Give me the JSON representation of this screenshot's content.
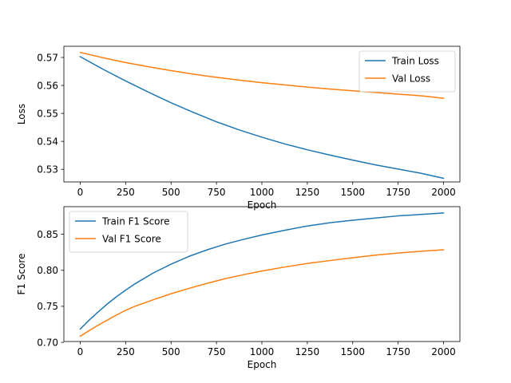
{
  "chart_data": [
    {
      "type": "line",
      "xlabel": "Epoch",
      "ylabel": "Loss",
      "xlim": [
        -90,
        2090
      ],
      "ylim": [
        0.5255,
        0.574
      ],
      "xticks": [
        0,
        250,
        500,
        750,
        1000,
        1250,
        1500,
        1750,
        2000
      ],
      "yticks": [
        0.53,
        0.54,
        0.55,
        0.56,
        0.57
      ],
      "ytick_labels": [
        "0.53",
        "0.54",
        "0.55",
        "0.56",
        "0.57"
      ],
      "legend": "top-right",
      "series": [
        {
          "name": "Train Loss",
          "color": "#1f77b4",
          "x": [
            0,
            125,
            250,
            375,
            500,
            625,
            750,
            875,
            1000,
            1125,
            1250,
            1375,
            1500,
            1625,
            1750,
            1875,
            2000
          ],
          "y": [
            0.5703,
            0.5658,
            0.5616,
            0.5576,
            0.5538,
            0.5503,
            0.547,
            0.5441,
            0.5415,
            0.5391,
            0.537,
            0.5351,
            0.5333,
            0.5316,
            0.5301,
            0.5286,
            0.5268
          ]
        },
        {
          "name": "Val Loss",
          "color": "#ff7f0e",
          "x": [
            0,
            125,
            250,
            375,
            500,
            625,
            750,
            875,
            1000,
            1125,
            1250,
            1375,
            1500,
            1625,
            1750,
            1875,
            2000
          ],
          "y": [
            0.5718,
            0.5699,
            0.5682,
            0.5667,
            0.5653,
            0.564,
            0.5629,
            0.5619,
            0.561,
            0.5602,
            0.5594,
            0.5587,
            0.5581,
            0.5575,
            0.5569,
            0.5563,
            0.5554
          ]
        }
      ]
    },
    {
      "type": "line",
      "xlabel": "Epoch",
      "ylabel": "F1 Score",
      "xlim": [
        -90,
        2090
      ],
      "ylim": [
        0.7012,
        0.8883
      ],
      "xticks": [
        0,
        250,
        500,
        750,
        1000,
        1250,
        1500,
        1750,
        2000
      ],
      "yticks": [
        0.7,
        0.75,
        0.8,
        0.85
      ],
      "ytick_labels": [
        "0.70",
        "0.75",
        "0.80",
        "0.85"
      ],
      "legend": "top-left",
      "series": [
        {
          "name": "Train F1 Score",
          "color": "#1f77b4",
          "x": [
            0,
            50,
            100,
            150,
            200,
            250,
            300,
            400,
            500,
            600,
            700,
            800,
            900,
            1000,
            1125,
            1250,
            1375,
            1500,
            1625,
            1750,
            1875,
            2000
          ],
          "y": [
            0.7185,
            0.731,
            0.7425,
            0.7535,
            0.7635,
            0.7725,
            0.781,
            0.796,
            0.8085,
            0.8195,
            0.8285,
            0.8365,
            0.843,
            0.849,
            0.8555,
            0.8615,
            0.866,
            0.8695,
            0.8725,
            0.8755,
            0.8775,
            0.8795
          ]
        },
        {
          "name": "Val F1 Score",
          "color": "#ff7f0e",
          "x": [
            0,
            50,
            100,
            150,
            200,
            250,
            300,
            400,
            500,
            600,
            700,
            800,
            900,
            1000,
            1125,
            1250,
            1375,
            1500,
            1625,
            1750,
            1875,
            2000
          ],
          "y": [
            0.7085,
            0.7165,
            0.724,
            0.731,
            0.738,
            0.7445,
            0.75,
            0.759,
            0.7675,
            0.775,
            0.782,
            0.7885,
            0.794,
            0.799,
            0.8045,
            0.8095,
            0.8135,
            0.8175,
            0.821,
            0.824,
            0.8265,
            0.8285
          ]
        }
      ]
    }
  ]
}
